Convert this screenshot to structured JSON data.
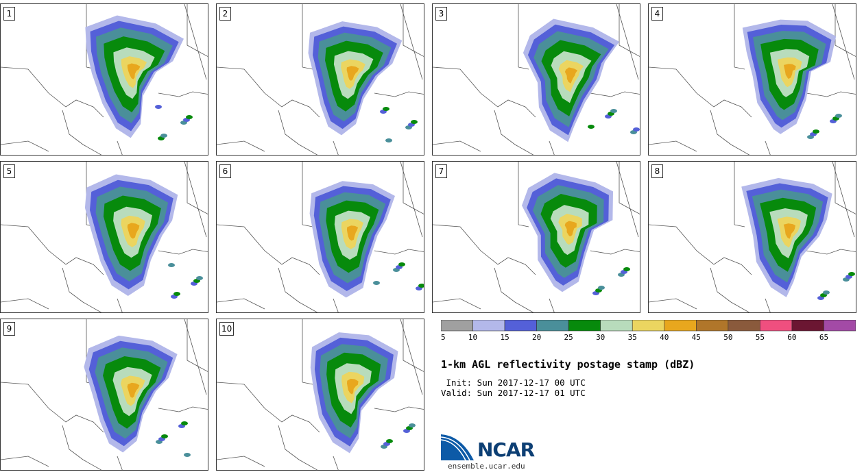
{
  "title": "1-km AGL reflectivity postage stamp (dBZ)",
  "init_time": " Init: Sun 2017-12-17 00 UTC",
  "valid_time": "Valid: Sun 2017-12-17 01 UTC",
  "logo_text": "NCAR",
  "logo_url": "ensemble.ucar.edu",
  "members": [
    "1",
    "2",
    "3",
    "4",
    "5",
    "6",
    "7",
    "8",
    "9",
    "10"
  ],
  "colorbar": {
    "colors": [
      "#a0a0a0",
      "#b3b8ea",
      "#5460d8",
      "#4a8f9a",
      "#078a0c",
      "#b8dcbc",
      "#ebd560",
      "#e8a71e",
      "#b0762a",
      "#8a5a3c",
      "#ef4f7f",
      "#6b1632",
      "#a34aa6"
    ],
    "tick_labels": [
      "5",
      "10",
      "15",
      "20",
      "25",
      "30",
      "35",
      "40",
      "45",
      "50",
      "55",
      "60",
      "65"
    ]
  },
  "colors": {
    "border": "#333333",
    "state_line": "#555555",
    "logo_blue": "#0d3f74"
  }
}
